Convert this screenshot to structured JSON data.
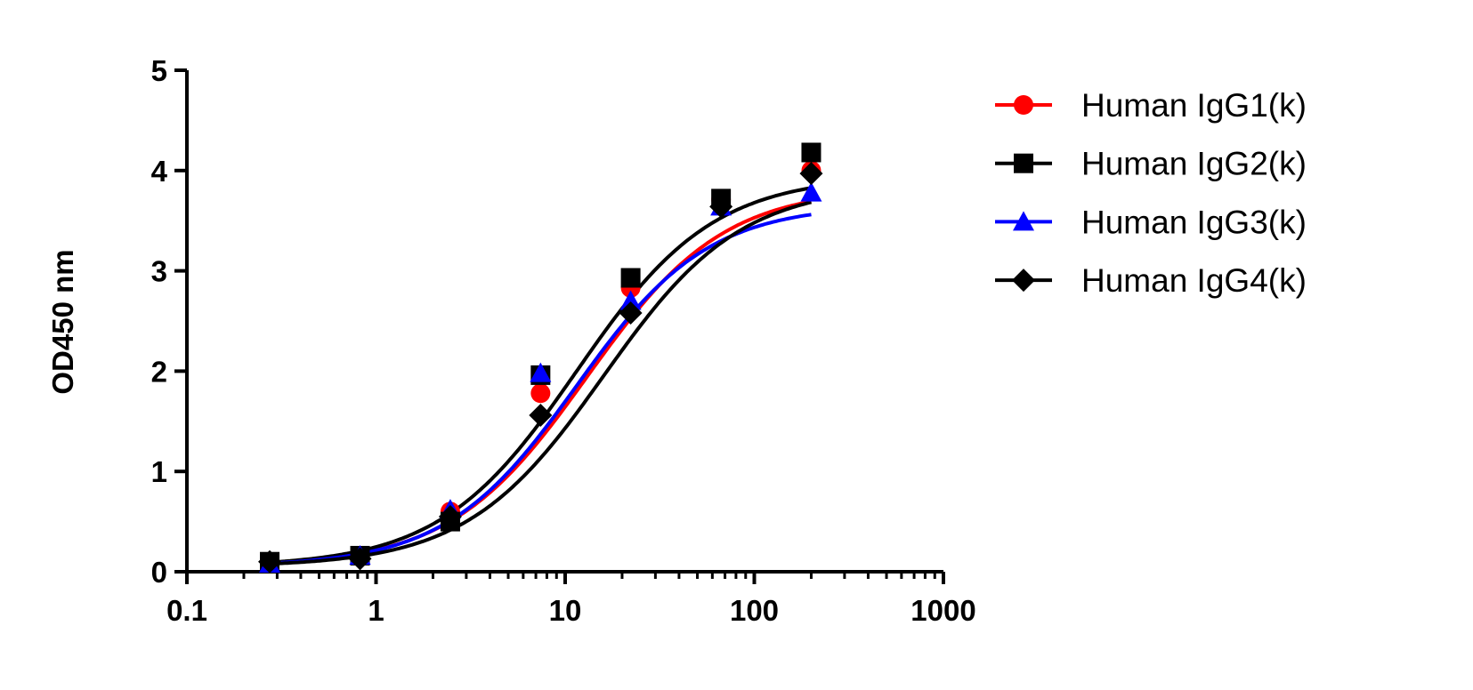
{
  "chart_data": {
    "type": "scatter",
    "title": "",
    "xlabel": "",
    "ylabel": "OD450 nm",
    "xscale": "log",
    "xlim": [
      0.1,
      1000
    ],
    "ylim": [
      0,
      5
    ],
    "xticks": [
      "0.1",
      "1",
      "10",
      "100",
      "1000"
    ],
    "yticks": [
      "0",
      "1",
      "2",
      "3",
      "4",
      "5"
    ],
    "grid": false,
    "legend_position": "right",
    "x": [
      0.274,
      0.823,
      2.47,
      7.41,
      22.2,
      66.7,
      200
    ],
    "series": [
      {
        "name": "Human IgG1(k)",
        "color": "#ff0000",
        "marker": "circle",
        "values": [
          0.09,
          0.15,
          0.6,
          1.78,
          2.83,
          3.71,
          4.0
        ],
        "fit": {
          "bottom": 0.05,
          "top": 3.83,
          "ec50": 13,
          "hill": 1.2
        }
      },
      {
        "name": "Human IgG2(k)",
        "color": "#000000",
        "marker": "square",
        "values": [
          0.1,
          0.16,
          0.5,
          1.96,
          2.93,
          3.72,
          4.18
        ],
        "fit": {
          "bottom": 0.05,
          "top": 3.95,
          "ec50": 11.5,
          "hill": 1.2
        }
      },
      {
        "name": "Human IgG3(k)",
        "color": "#0000ff",
        "marker": "triangle",
        "values": [
          0.08,
          0.16,
          0.62,
          1.98,
          2.7,
          3.64,
          3.78
        ],
        "fit": {
          "bottom": 0.05,
          "top": 3.66,
          "ec50": 11.5,
          "hill": 1.25
        }
      },
      {
        "name": "Human IgG4(k)",
        "color": "#000000",
        "marker": "diamond",
        "values": [
          0.1,
          0.13,
          0.55,
          1.56,
          2.58,
          3.64,
          3.97
        ],
        "fit": {
          "bottom": 0.05,
          "top": 3.86,
          "ec50": 16,
          "hill": 1.2
        }
      }
    ]
  }
}
